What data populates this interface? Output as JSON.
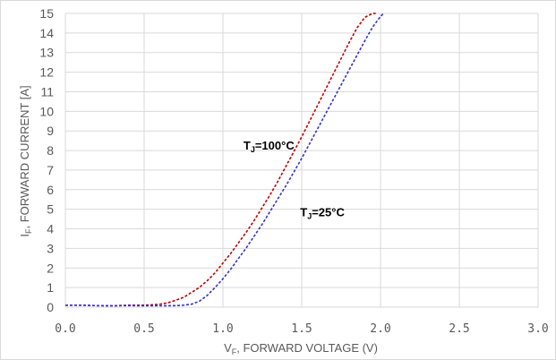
{
  "chart_data": {
    "type": "line",
    "xlabel": {
      "main": "V",
      "sub": "F",
      "rest": ", FORWARD VOLTAGE (V)"
    },
    "ylabel": {
      "main": "I",
      "sub": "F",
      "rest": ", FORWARD CURRENT [A]"
    },
    "xlim": [
      0,
      3.0
    ],
    "ylim": [
      0,
      15
    ],
    "xticks": [
      "0.0",
      "0.5",
      "1.0",
      "1.5",
      "2.0",
      "2.5",
      "3.0"
    ],
    "yticks": [
      "0",
      "1",
      "2",
      "3",
      "4",
      "5",
      "6",
      "7",
      "8",
      "9",
      "10",
      "11",
      "12",
      "13",
      "14",
      "15"
    ],
    "grid": true,
    "series": [
      {
        "color": "#c00000",
        "x": [
          0.0,
          0.1,
          0.2,
          0.3,
          0.4,
          0.5,
          0.55,
          0.6,
          0.65,
          0.7,
          0.75,
          0.8,
          0.85,
          0.9,
          0.95,
          1.0,
          1.05,
          1.1,
          1.15,
          1.2,
          1.25,
          1.3,
          1.35,
          1.4,
          1.45,
          1.5,
          1.55,
          1.6,
          1.65,
          1.7,
          1.75,
          1.8,
          1.85,
          1.9,
          1.95,
          1.98
        ],
        "y": [
          0.1,
          0.1,
          0.08,
          0.07,
          0.1,
          0.1,
          0.12,
          0.15,
          0.22,
          0.35,
          0.5,
          0.75,
          1.0,
          1.35,
          1.75,
          2.25,
          2.75,
          3.3,
          3.85,
          4.45,
          5.1,
          5.75,
          6.45,
          7.2,
          7.95,
          8.7,
          9.5,
          10.3,
          11.1,
          11.9,
          12.7,
          13.5,
          14.25,
          14.8,
          15.0,
          15.0
        ]
      },
      {
        "color": "#3333cc",
        "x": [
          0.0,
          0.1,
          0.2,
          0.3,
          0.4,
          0.5,
          0.6,
          0.7,
          0.75,
          0.8,
          0.85,
          0.9,
          0.95,
          1.0,
          1.05,
          1.1,
          1.15,
          1.2,
          1.25,
          1.3,
          1.35,
          1.4,
          1.45,
          1.5,
          1.55,
          1.6,
          1.65,
          1.7,
          1.75,
          1.8,
          1.85,
          1.9,
          1.95,
          2.0,
          2.02
        ],
        "y": [
          0.1,
          0.1,
          0.08,
          0.07,
          0.08,
          0.07,
          0.07,
          0.08,
          0.1,
          0.15,
          0.3,
          0.6,
          1.0,
          1.45,
          1.95,
          2.5,
          3.05,
          3.65,
          4.25,
          4.9,
          5.55,
          6.2,
          6.9,
          7.6,
          8.35,
          9.1,
          9.85,
          10.6,
          11.35,
          12.1,
          12.85,
          13.6,
          14.3,
          14.85,
          15.0
        ]
      }
    ],
    "annotations": [
      {
        "main": "T",
        "sub": "J",
        "rest": "=100°C",
        "x": 1.13,
        "y": 8.05
      },
      {
        "main": "T",
        "sub": "J",
        "rest": "=25°C",
        "x": 1.49,
        "y": 4.65
      }
    ],
    "colors": {
      "grid": "#d9d9d9",
      "text": "#595959",
      "border": "#d9d9d9"
    }
  }
}
